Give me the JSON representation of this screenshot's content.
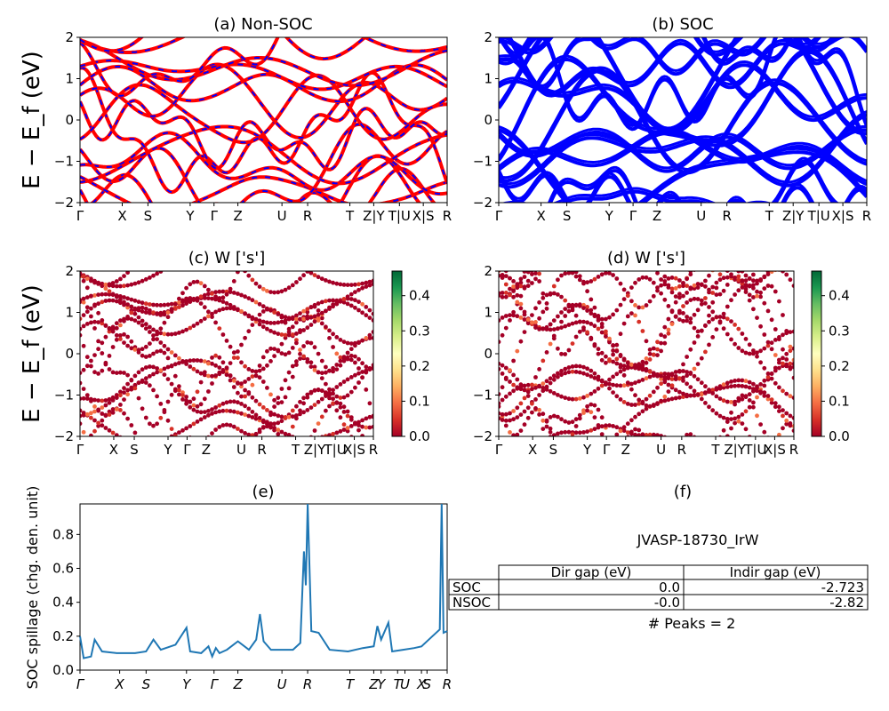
{
  "panels": {
    "a": {
      "title": "(a) Non-SOC"
    },
    "b": {
      "title": "(b) SOC"
    },
    "c": {
      "title": "(c)  W ['s']"
    },
    "d": {
      "title": "(d) W ['s']"
    },
    "e": {
      "title": "(e)"
    },
    "f": {
      "title": "(f)"
    }
  },
  "band_axes": {
    "ylabel": "E − E_f (eV)",
    "ylim": [
      -2,
      2
    ],
    "yticks": [
      "2",
      "1",
      "0",
      "−1",
      "−2"
    ],
    "kpath_labels": [
      "Γ",
      "X",
      "S",
      "Y",
      "Γ",
      "Z",
      "U",
      "R",
      "T",
      "Z|Y",
      "T|U",
      "X|S",
      "R"
    ]
  },
  "colorbar": {
    "ticks": [
      "0.4",
      "0.3",
      "0.2",
      "0.1",
      "0.0"
    ],
    "range": [
      0,
      0.47
    ],
    "colormap": "RdYlGn"
  },
  "spillage": {
    "ylabel": "SOC spillage (chg. den. unit)",
    "yticks": [
      "0.8",
      "0.6",
      "0.4",
      "0.2",
      "0.0"
    ],
    "xticks": [
      "Γ",
      "X",
      "S",
      "Y",
      "Γ",
      "Z",
      "U",
      "R",
      "T",
      "Z",
      "Y",
      "T",
      "U",
      "X",
      "S",
      "R"
    ]
  },
  "info": {
    "material": "JVASP-18730_IrW",
    "table_headers": [
      "",
      "Dir gap (eV)",
      "Indir gap (eV)"
    ],
    "table_rows": [
      [
        "SOC",
        "0.0",
        "-2.723"
      ],
      [
        "NSOC",
        "-0.0",
        "-2.82"
      ]
    ],
    "peaks": "# Peaks = 2"
  },
  "colors": {
    "nonsoc_bands": "#ff0000",
    "nonsoc_dash": "#0000ff",
    "soc_bands": "#0000ff",
    "spillage_line": "#1f77b4"
  },
  "chart_data": [
    {
      "type": "line",
      "title": "(e)",
      "ylabel": "SOC spillage (chg. den. unit)",
      "ylim": [
        0,
        0.98
      ],
      "x_labels": [
        "Γ",
        "X",
        "S",
        "Y",
        "Γ",
        "Z",
        "U",
        "R",
        "T",
        "Z",
        "Y",
        "T",
        "U",
        "X",
        "S",
        "R"
      ],
      "series": [
        {
          "values": [
            [
              0.0,
              0.2
            ],
            [
              0.01,
              0.07
            ],
            [
              0.03,
              0.08
            ],
            [
              0.04,
              0.18
            ],
            [
              0.06,
              0.11
            ],
            [
              0.1,
              0.1
            ],
            [
              0.15,
              0.1
            ],
            [
              0.18,
              0.11
            ],
            [
              0.2,
              0.18
            ],
            [
              0.22,
              0.12
            ],
            [
              0.26,
              0.15
            ],
            [
              0.29,
              0.25
            ],
            [
              0.3,
              0.11
            ],
            [
              0.33,
              0.1
            ],
            [
              0.35,
              0.14
            ],
            [
              0.36,
              0.08
            ],
            [
              0.37,
              0.13
            ],
            [
              0.38,
              0.1
            ],
            [
              0.4,
              0.12
            ],
            [
              0.43,
              0.17
            ],
            [
              0.46,
              0.12
            ],
            [
              0.48,
              0.18
            ],
            [
              0.49,
              0.33
            ],
            [
              0.5,
              0.17
            ],
            [
              0.52,
              0.12
            ],
            [
              0.58,
              0.12
            ],
            [
              0.6,
              0.16
            ],
            [
              0.61,
              0.7
            ],
            [
              0.615,
              0.5
            ],
            [
              0.62,
              0.98
            ],
            [
              0.63,
              0.23
            ],
            [
              0.65,
              0.22
            ],
            [
              0.68,
              0.12
            ],
            [
              0.73,
              0.11
            ],
            [
              0.77,
              0.13
            ],
            [
              0.8,
              0.14
            ],
            [
              0.81,
              0.26
            ],
            [
              0.82,
              0.18
            ],
            [
              0.84,
              0.28
            ],
            [
              0.85,
              0.11
            ],
            [
              0.88,
              0.12
            ],
            [
              0.91,
              0.13
            ],
            [
              0.93,
              0.14
            ],
            [
              0.95,
              0.18
            ],
            [
              0.98,
              0.24
            ],
            [
              0.985,
              0.98
            ],
            [
              0.99,
              0.22
            ],
            [
              1.0,
              0.23
            ]
          ]
        }
      ]
    }
  ]
}
